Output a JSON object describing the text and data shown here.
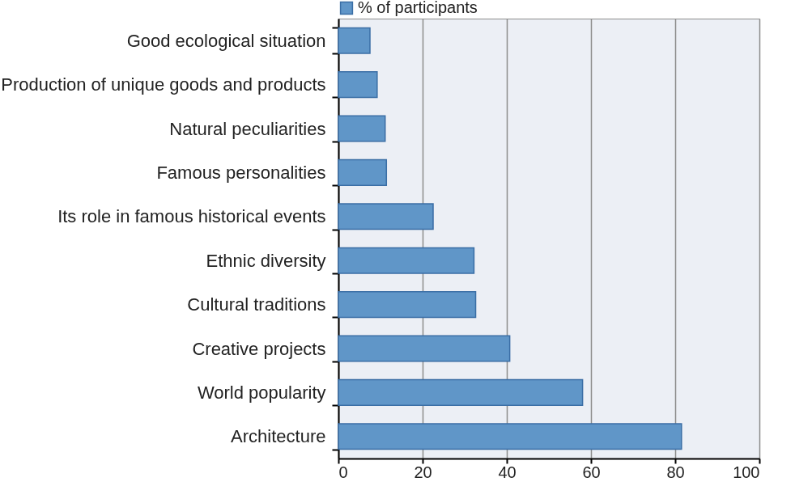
{
  "chart_data": {
    "type": "bar",
    "orientation": "horizontal",
    "categories": [
      "Good ecological situation",
      "Production of unique goods and products",
      "Natural peculiarities",
      "Famous personalities",
      "Its role in famous historical events",
      "Ethnic diversity",
      "Cultural traditions",
      "Creative projects",
      "World popularity",
      "Architecture"
    ],
    "series": [
      {
        "name": "% of participants",
        "color": "#6096c8",
        "values": [
          7.5,
          9.2,
          11.1,
          11.4,
          22.5,
          32.2,
          32.6,
          40.7,
          58.0,
          81.5
        ]
      }
    ],
    "xlim": [
      0,
      100
    ],
    "xticks": [
      0,
      20,
      40,
      60,
      80,
      100
    ],
    "grid": "x",
    "legend": "top"
  }
}
